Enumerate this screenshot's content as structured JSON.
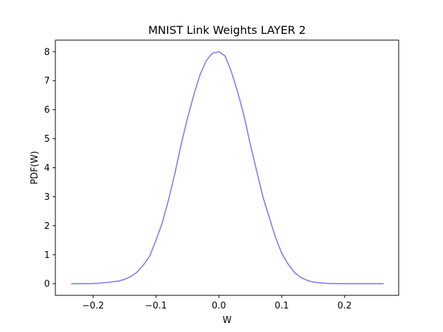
{
  "chart_data": {
    "type": "line",
    "title": "MNIST Link Weights LAYER 2",
    "xlabel": "W",
    "ylabel": "PDF(W)",
    "xlim": [
      -0.26,
      0.286
    ],
    "ylim": [
      -0.4,
      8.4
    ],
    "grid": false,
    "x_ticks": [
      -0.2,
      -0.1,
      0.0,
      0.1,
      0.2
    ],
    "x_tick_labels": [
      "−0.2",
      "−0.1",
      "0.0",
      "0.1",
      "0.2"
    ],
    "y_ticks": [
      0,
      1,
      2,
      3,
      4,
      5,
      6,
      7,
      8
    ],
    "y_tick_labels": [
      "0",
      "1",
      "2",
      "3",
      "4",
      "5",
      "6",
      "7",
      "8"
    ],
    "line_color": "#7b7bf3",
    "series": [
      {
        "x": [
          -0.235,
          -0.21,
          -0.19,
          -0.175,
          -0.16,
          -0.15,
          -0.14,
          -0.13,
          -0.12,
          -0.11,
          -0.1,
          -0.09,
          -0.08,
          -0.07,
          -0.06,
          -0.05,
          -0.04,
          -0.03,
          -0.02,
          -0.01,
          0.0,
          0.01,
          0.02,
          0.03,
          0.04,
          0.05,
          0.06,
          0.07,
          0.08,
          0.09,
          0.1,
          0.11,
          0.12,
          0.13,
          0.14,
          0.15,
          0.16,
          0.175,
          0.19,
          0.21,
          0.235,
          0.262
        ],
        "y": [
          0.0,
          0.0,
          0.02,
          0.05,
          0.09,
          0.15,
          0.25,
          0.4,
          0.65,
          0.95,
          1.5,
          2.1,
          2.9,
          3.8,
          4.8,
          5.7,
          6.5,
          7.2,
          7.7,
          7.95,
          8.0,
          7.85,
          7.3,
          6.6,
          5.8,
          4.8,
          3.9,
          3.0,
          2.3,
          1.6,
          1.05,
          0.68,
          0.4,
          0.22,
          0.12,
          0.06,
          0.03,
          0.01,
          0.0,
          0.0,
          0.0,
          0.0
        ]
      }
    ]
  }
}
